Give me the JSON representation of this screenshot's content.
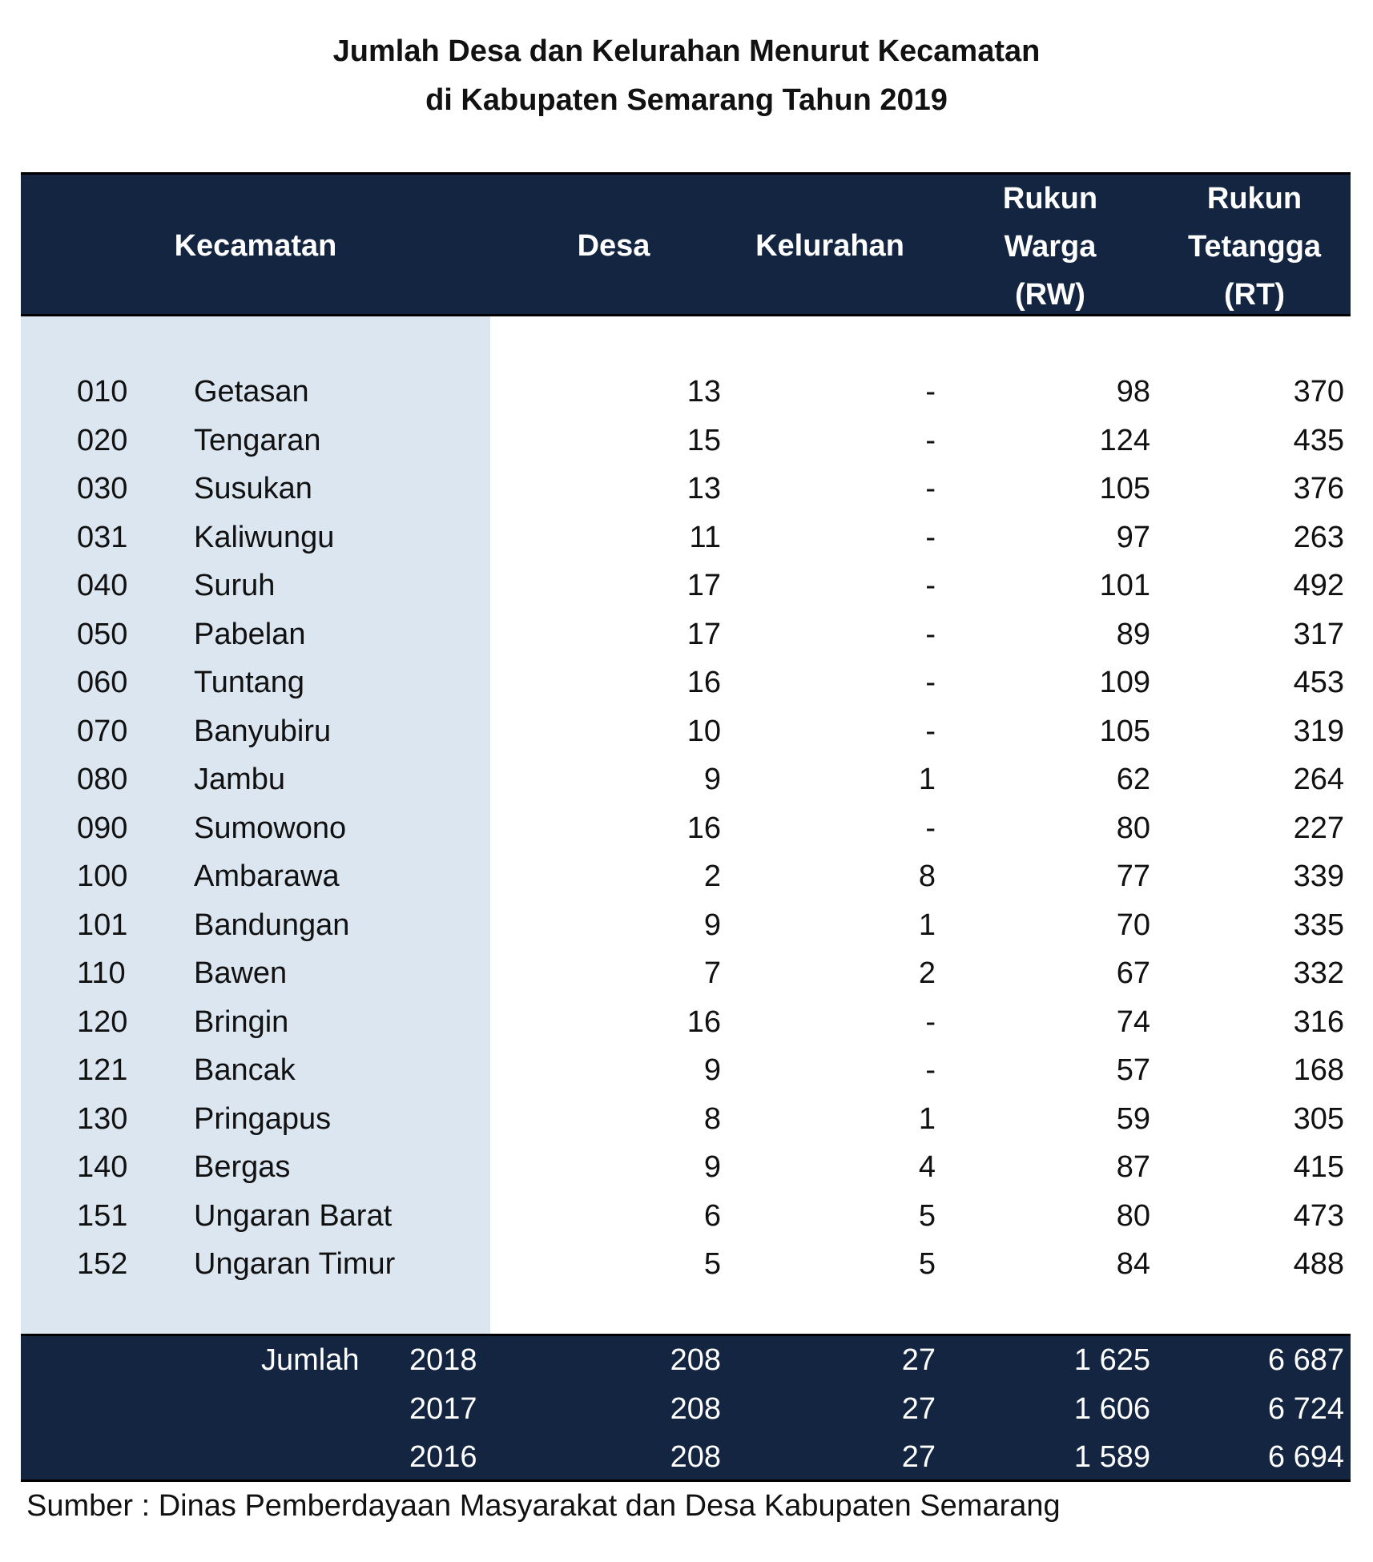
{
  "title_line1": "Jumlah Desa dan Kelurahan Menurut Kecamatan",
  "title_line2": "di Kabupaten Semarang Tahun 2019",
  "headers": {
    "kecamatan": "Kecamatan",
    "desa": "Desa",
    "kelurahan": "Kelurahan",
    "rw_line1": "Rukun",
    "rw_line2": "Warga",
    "rw_line3": "(RW)",
    "rt_line1": "Rukun",
    "rt_line2": "Tetangga",
    "rt_line3": "(RT)"
  },
  "rows": [
    {
      "code": "010",
      "name": "Getasan",
      "desa": "13",
      "kel": "-",
      "rw": "98",
      "rt": "370"
    },
    {
      "code": "020",
      "name": "Tengaran",
      "desa": "15",
      "kel": "-",
      "rw": "124",
      "rt": "435"
    },
    {
      "code": "030",
      "name": "Susukan",
      "desa": "13",
      "kel": "-",
      "rw": "105",
      "rt": "376"
    },
    {
      "code": "031",
      "name": "Kaliwungu",
      "desa": "11",
      "kel": "-",
      "rw": "97",
      "rt": "263"
    },
    {
      "code": "040",
      "name": "Suruh",
      "desa": "17",
      "kel": "-",
      "rw": "101",
      "rt": "492"
    },
    {
      "code": "050",
      "name": "Pabelan",
      "desa": "17",
      "kel": "-",
      "rw": "89",
      "rt": "317"
    },
    {
      "code": "060",
      "name": "Tuntang",
      "desa": "16",
      "kel": "-",
      "rw": "109",
      "rt": "453"
    },
    {
      "code": "070",
      "name": "Banyubiru",
      "desa": "10",
      "kel": "-",
      "rw": "105",
      "rt": "319"
    },
    {
      "code": "080",
      "name": "Jambu",
      "desa": "9",
      "kel": "1",
      "rw": "62",
      "rt": "264"
    },
    {
      "code": "090",
      "name": "Sumowono",
      "desa": "16",
      "kel": "-",
      "rw": "80",
      "rt": "227"
    },
    {
      "code": "100",
      "name": "Ambarawa",
      "desa": "2",
      "kel": "8",
      "rw": "77",
      "rt": "339"
    },
    {
      "code": "101",
      "name": "Bandungan",
      "desa": "9",
      "kel": "1",
      "rw": "70",
      "rt": "335"
    },
    {
      "code": "110",
      "name": "Bawen",
      "desa": "7",
      "kel": "2",
      "rw": "67",
      "rt": "332"
    },
    {
      "code": "120",
      "name": "Bringin",
      "desa": "16",
      "kel": "-",
      "rw": "74",
      "rt": "316"
    },
    {
      "code": "121",
      "name": "Bancak",
      "desa": "9",
      "kel": "-",
      "rw": "57",
      "rt": "168"
    },
    {
      "code": "130",
      "name": "Pringapus",
      "desa": "8",
      "kel": "1",
      "rw": "59",
      "rt": "305"
    },
    {
      "code": "140",
      "name": "Bergas",
      "desa": "9",
      "kel": "4",
      "rw": "87",
      "rt": "415"
    },
    {
      "code": "151",
      "name": "Ungaran Barat",
      "desa": "6",
      "kel": "5",
      "rw": "80",
      "rt": "473"
    },
    {
      "code": "152",
      "name": "Ungaran Timur",
      "desa": "5",
      "kel": "5",
      "rw": "84",
      "rt": "488"
    }
  ],
  "totals": {
    "label": "Jumlah",
    "years": [
      {
        "year": "2018",
        "desa": "208",
        "kel": "27",
        "rw": "1 625",
        "rt": "6 687"
      },
      {
        "year": "2017",
        "desa": "208",
        "kel": "27",
        "rw": "1 606",
        "rt": "6 724"
      },
      {
        "year": "2016",
        "desa": "208",
        "kel": "27",
        "rw": "1 589",
        "rt": "6 694"
      }
    ]
  },
  "source": "Sumber : Dinas Pemberdayaan Masyarakat dan Desa Kabupaten Semarang"
}
